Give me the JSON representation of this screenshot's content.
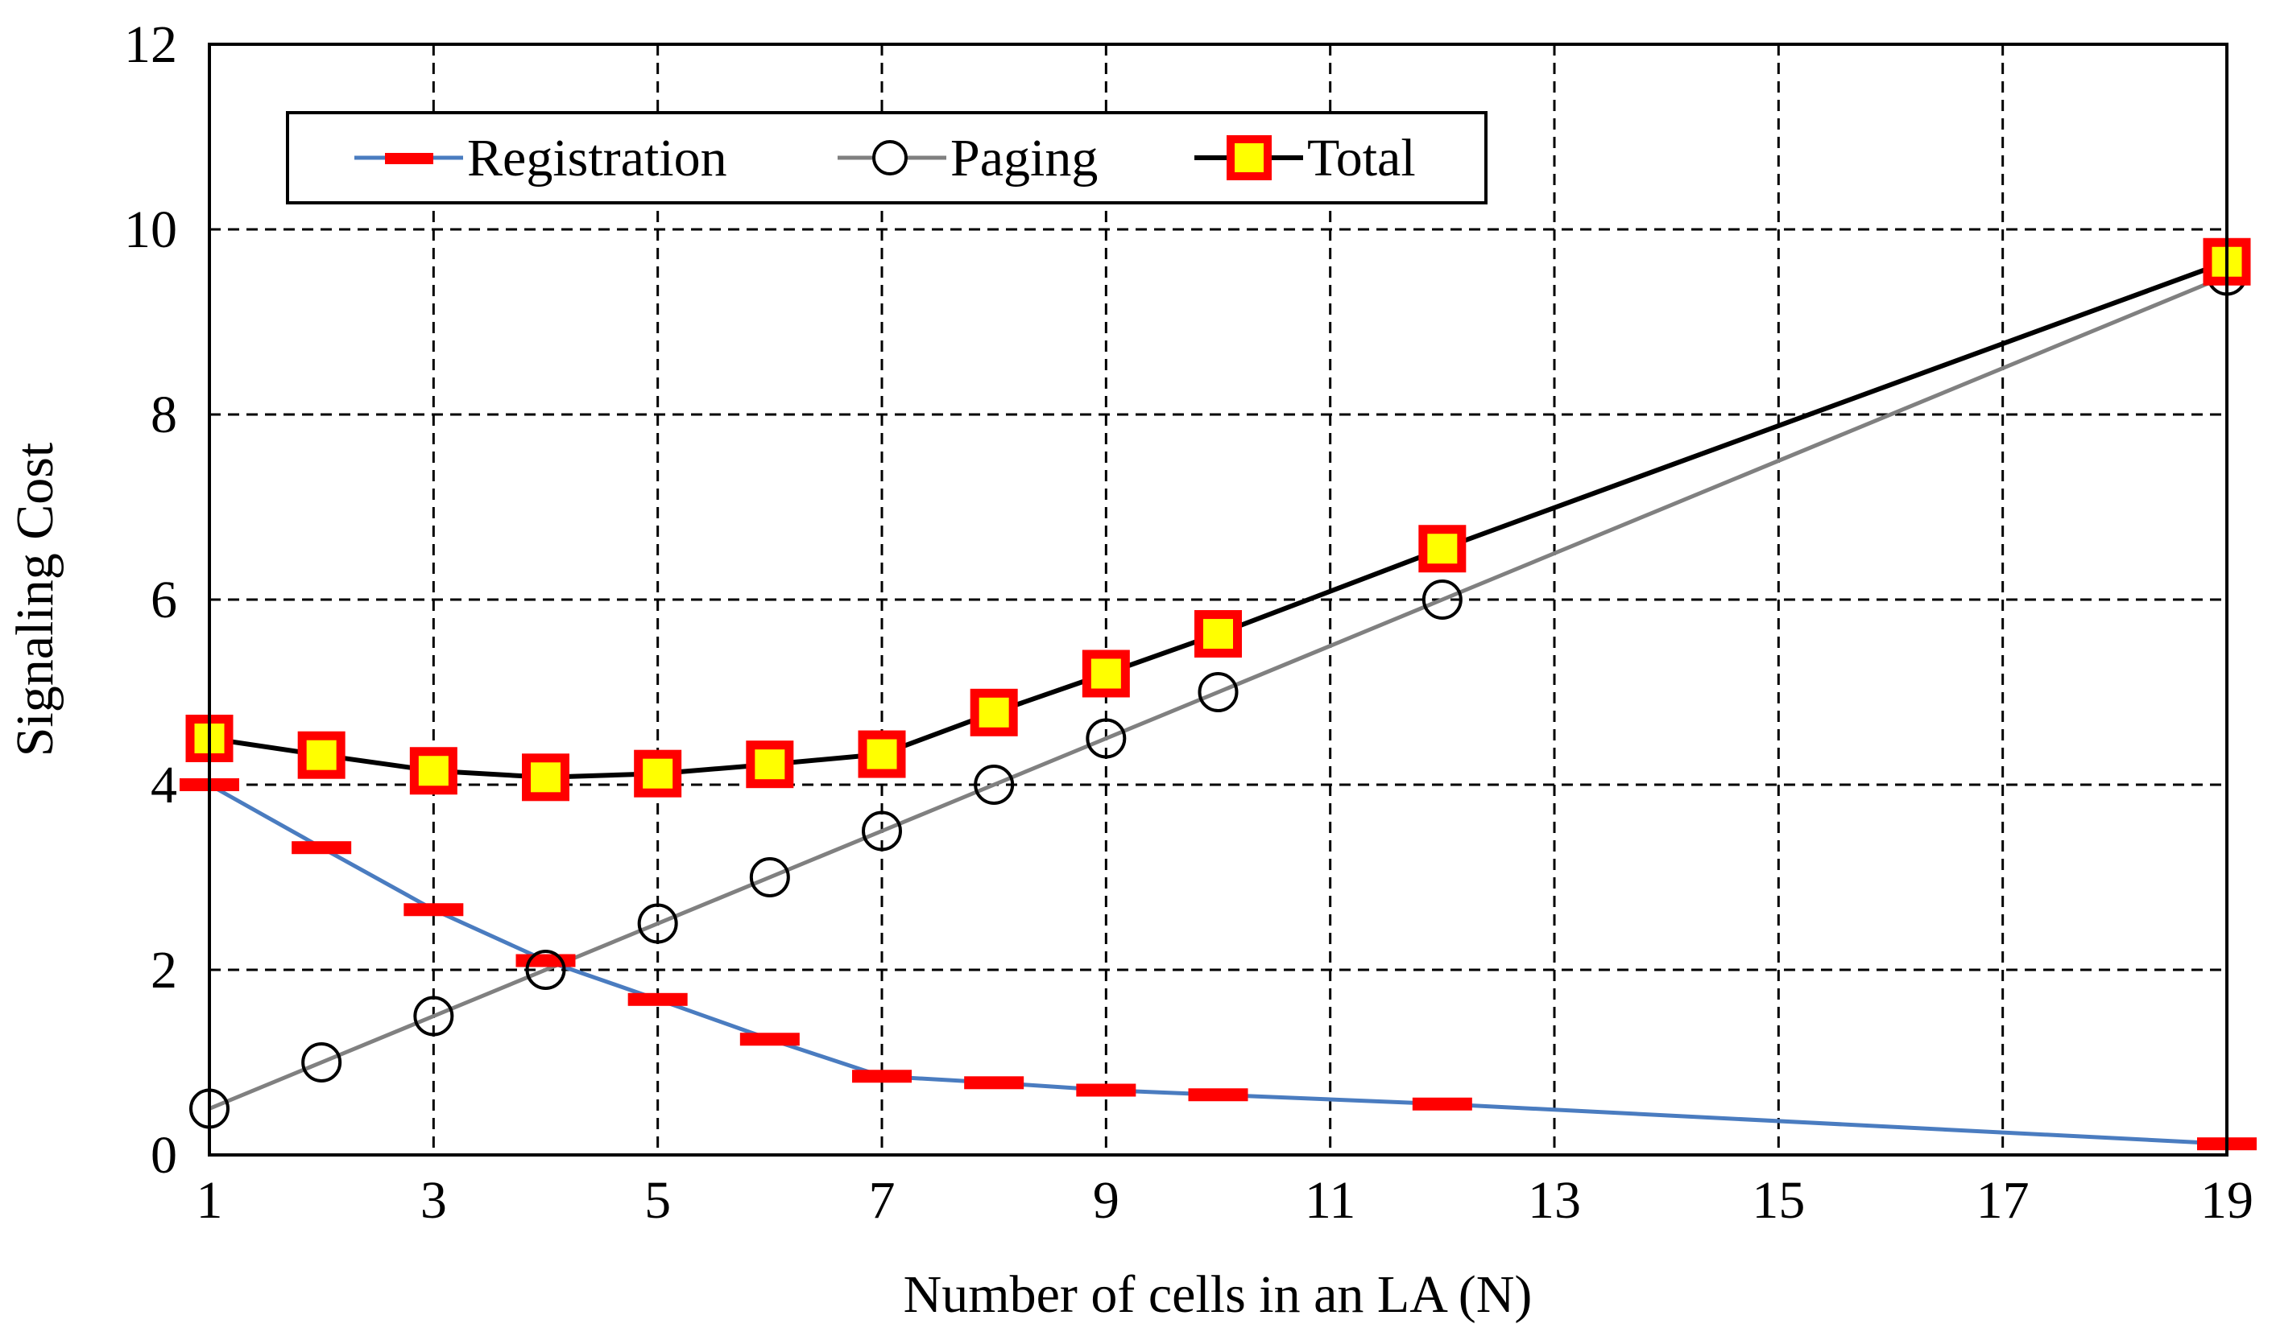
{
  "chart_data": {
    "type": "line",
    "title": "",
    "xlabel": "Number of cells in an LA (N)",
    "ylabel": "Signaling Cost",
    "xlim": [
      1,
      19
    ],
    "ylim": [
      0,
      12
    ],
    "xticks": [
      1,
      3,
      5,
      7,
      9,
      11,
      13,
      15,
      17,
      19
    ],
    "yticks": [
      0,
      2,
      4,
      6,
      8,
      10,
      12
    ],
    "grid": true,
    "legend_position": "top-left",
    "series": [
      {
        "name": "Registration",
        "marker": "dash",
        "line_color": "#4a7cc0",
        "marker_color": "#ff0000",
        "x": [
          1,
          2,
          3,
          4,
          5,
          6,
          7,
          8,
          9,
          10,
          12,
          19
        ],
        "values": [
          4.0,
          3.32,
          2.65,
          2.1,
          1.68,
          1.25,
          0.85,
          0.78,
          0.7,
          0.65,
          0.55,
          0.12
        ]
      },
      {
        "name": "Paging",
        "marker": "circle",
        "line_color": "#808080",
        "marker_color": "#000000",
        "x": [
          1,
          2,
          3,
          4,
          5,
          6,
          7,
          8,
          9,
          10,
          12,
          19
        ],
        "values": [
          0.5,
          1.0,
          1.5,
          2.0,
          2.5,
          3.0,
          3.5,
          4.0,
          4.5,
          5.0,
          6.0,
          9.5
        ]
      },
      {
        "name": "Total",
        "marker": "square",
        "line_color": "#000000",
        "marker_color": "#ff0000",
        "marker_fill": "#ffff00",
        "x": [
          1,
          2,
          3,
          4,
          5,
          6,
          7,
          8,
          9,
          10,
          12,
          19
        ],
        "values": [
          4.5,
          4.32,
          4.15,
          4.08,
          4.12,
          4.22,
          4.33,
          4.78,
          5.2,
          5.63,
          6.55,
          9.65
        ]
      }
    ]
  }
}
